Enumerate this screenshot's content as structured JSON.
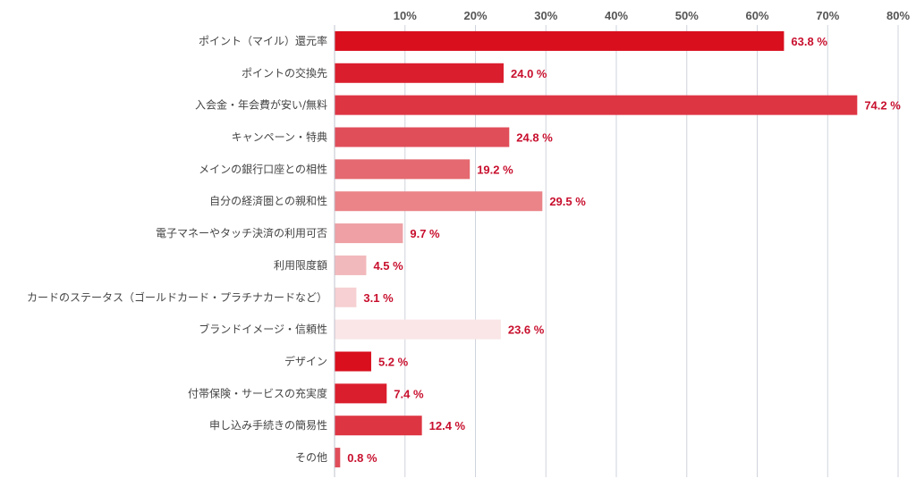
{
  "chart_data": {
    "type": "bar",
    "orientation": "horizontal",
    "title": "",
    "xlabel": "",
    "ylabel": "",
    "xlim": [
      0,
      80
    ],
    "ticks": [
      10,
      20,
      30,
      40,
      50,
      60,
      70,
      80
    ],
    "tick_suffix": "%",
    "value_suffix": " %",
    "grid": true,
    "tick_position": "top",
    "categories": [
      "ポイント（マイル）還元率",
      "ポイントの交換先",
      "入会金・年会費が安い/無料",
      "キャンペーン・特典",
      "メインの銀行口座との相性",
      "自分の経済圏との親和性",
      "電子マネーやタッチ決済の利用可否",
      "利用限度額",
      "カードのステータス（ゴールドカード・プラチナカードなど）",
      "ブランドイメージ・信頼性",
      "デザイン",
      "付帯保険・サービスの充実度",
      "申し込み手続きの簡易性",
      "その他"
    ],
    "values": [
      63.8,
      24.0,
      74.2,
      24.8,
      19.2,
      29.5,
      9.7,
      4.5,
      3.1,
      23.6,
      5.2,
      7.4,
      12.4,
      0.8
    ],
    "value_labels": [
      "63.8",
      "24.0",
      "74.2",
      "24.8",
      "19.2",
      "29.5",
      "9.7",
      "4.5",
      "3.1",
      "23.6",
      "5.2",
      "7.4",
      "12.4",
      "0.8"
    ],
    "bar_colors": [
      "#d90f1e",
      "#db1e2d",
      "#de3543",
      "#e04e5a",
      "#e56970",
      "#ea8489",
      "#eea0a4",
      "#f2b9bc",
      "#f6d0d2",
      "#fae6e7",
      "#d90f1e",
      "#db1e2d",
      "#de3543",
      "#e04e5a"
    ],
    "label_color": "#c8102e"
  }
}
